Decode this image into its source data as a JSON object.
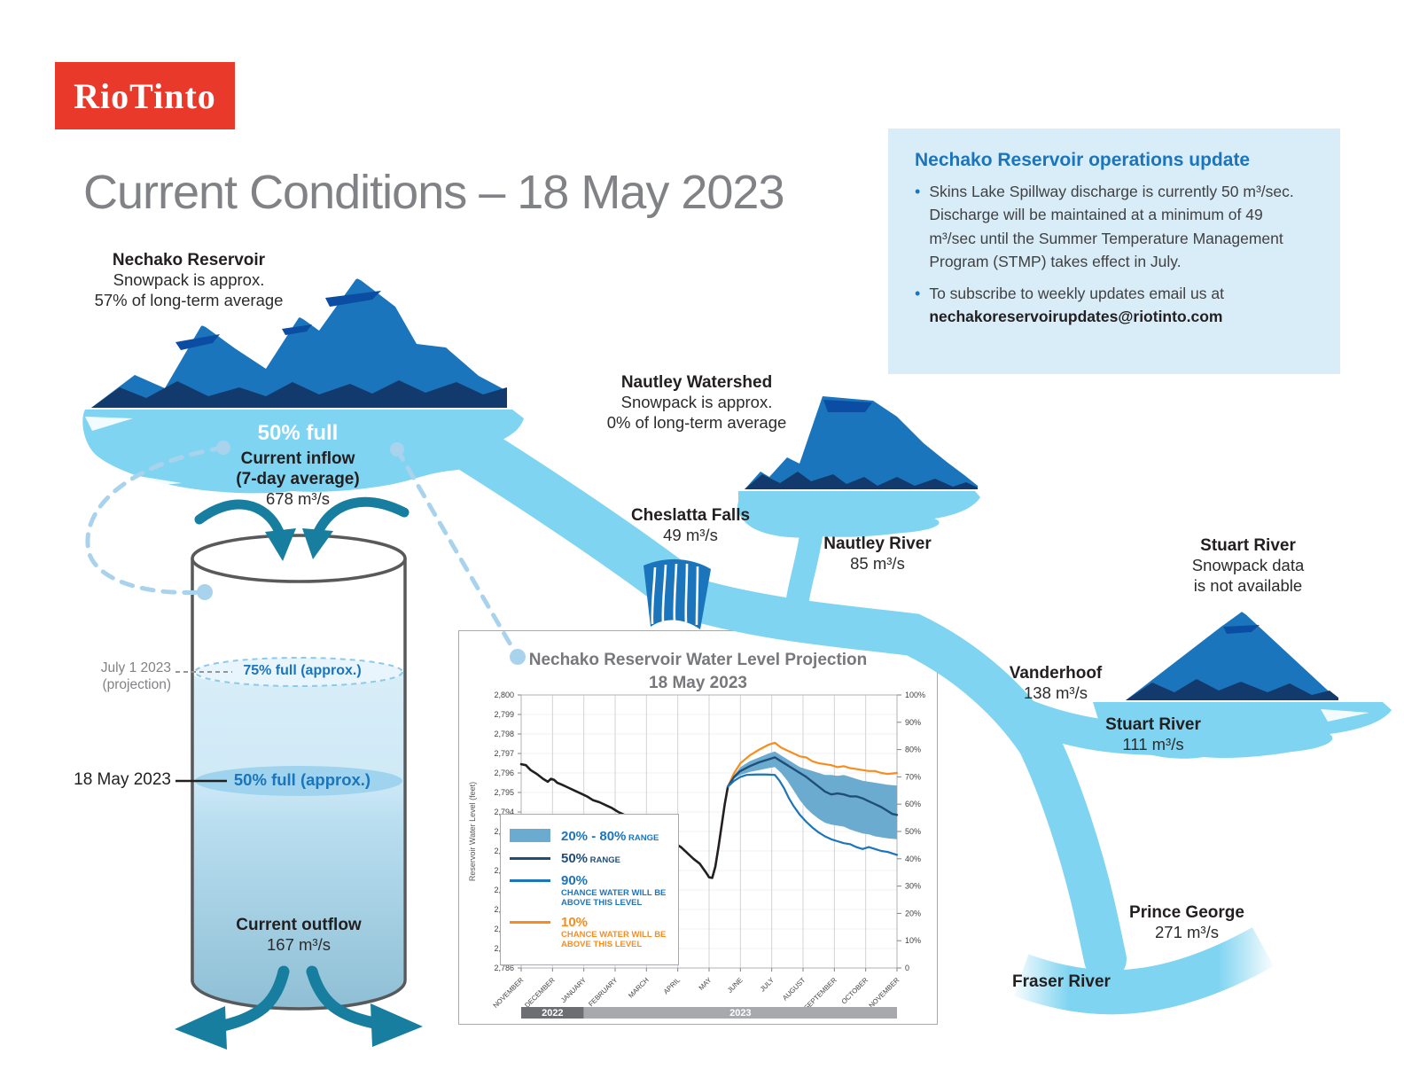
{
  "header": {
    "logo_text": "RioTinto",
    "title": "Current Conditions – 18 May 2023"
  },
  "ops_box": {
    "heading": "Nechako Reservoir operations update",
    "bullet1": "Skins Lake Spillway discharge is currently 50 m³/sec. Discharge will be maintained at a minimum of 49 m³/sec until the Summer Temperature Management Program (STMP) takes effect in July.",
    "bullet2_text": "To subscribe to weekly updates email us at ",
    "bullet2_email": "nechakoreservoirupdates@riotinto.com"
  },
  "nechako": {
    "name": "Nechako Reservoir",
    "line2": "Snowpack is approx.",
    "line3": "57% of long-term average",
    "fill_label": "50% full",
    "inflow_label": "Current inflow",
    "inflow_sub": "(7-day average)",
    "inflow_value": "678 m³/s"
  },
  "cylinder": {
    "proj_date": "July 1 2023",
    "proj_date2": "(projection)",
    "proj_level": "75% full (approx.)",
    "current_date": "18 May 2023",
    "current_level": "50% full (approx.)",
    "outflow_label": "Current outflow",
    "outflow_value": "167 m³/s"
  },
  "cheslatta": {
    "name": "Cheslatta Falls",
    "value": "49 m³/s"
  },
  "nautley": {
    "watershed": "Nautley Watershed",
    "line2": "Snowpack is approx.",
    "line3": "0% of long-term average",
    "river": "Nautley River",
    "value": "85 m³/s"
  },
  "stuart": {
    "name": "Stuart River",
    "line2": "Snowpack data",
    "line3": "is not available",
    "river": "Stuart River",
    "value": "111 m³/s"
  },
  "vanderhoof": {
    "name": "Vanderhoof",
    "value": "138 m³/s"
  },
  "prince_george": {
    "name": "Prince George",
    "value": "271 m³/s"
  },
  "fraser": {
    "name": "Fraser River"
  },
  "colors": {
    "brand_red": "#e8392b",
    "heading_blue": "#1b75bc",
    "river_light": "#7fd4f1",
    "mountain_blue": "#1b75bc",
    "mountain_navy": "#123a6d",
    "teal_arrow": "#177ea0"
  },
  "chart_data": {
    "type": "line",
    "title": "Nechako Reservoir Water Level Projection",
    "subtitle": "18 May 2023",
    "ylabel": "Reservoir Water Level (feet)",
    "ylim": [
      2786,
      2800
    ],
    "y_step": 1,
    "right_axis": {
      "min": 0,
      "max": 100,
      "step": 10,
      "suffix": "%"
    },
    "x_months": [
      "NOVEMBER",
      "DECEMBER",
      "JANUARY",
      "FEBRUARY",
      "MARCH",
      "APRIL",
      "MAY",
      "JUNE",
      "JULY",
      "AUGUST",
      "SEPTEMBER",
      "OCTOBER",
      "NOVEMBER"
    ],
    "year_bars": [
      {
        "label": "2022",
        "from": 0,
        "to": 2,
        "color": "#6d6e71"
      },
      {
        "label": "2023",
        "from": 2,
        "to": 12,
        "color": "#a7a9ac"
      }
    ],
    "band": {
      "name": "20% - 80% range",
      "color": "#6aabcf",
      "upper": [
        [
          6.6,
          2795.3
        ],
        [
          6.8,
          2795.9
        ],
        [
          7.0,
          2796.3
        ],
        [
          7.3,
          2796.6
        ],
        [
          7.6,
          2796.8
        ],
        [
          7.9,
          2797.0
        ],
        [
          8.1,
          2797.1
        ],
        [
          8.3,
          2796.9
        ],
        [
          8.5,
          2796.7
        ],
        [
          8.7,
          2796.5
        ],
        [
          8.9,
          2796.3
        ],
        [
          9.1,
          2796.2
        ],
        [
          9.3,
          2796.1
        ],
        [
          9.5,
          2796.0
        ],
        [
          9.7,
          2795.9
        ],
        [
          9.9,
          2795.9
        ],
        [
          10.1,
          2795.85
        ],
        [
          10.3,
          2795.9
        ],
        [
          10.5,
          2795.8
        ],
        [
          10.7,
          2795.7
        ],
        [
          10.9,
          2795.6
        ],
        [
          11.1,
          2795.55
        ],
        [
          11.3,
          2795.5
        ],
        [
          11.5,
          2795.45
        ],
        [
          11.7,
          2795.4
        ],
        [
          12,
          2795.35
        ]
      ],
      "lower": [
        [
          6.6,
          2795.3
        ],
        [
          6.8,
          2795.7
        ],
        [
          7.0,
          2795.9
        ],
        [
          7.3,
          2796.05
        ],
        [
          7.6,
          2796.15
        ],
        [
          7.9,
          2796.25
        ],
        [
          8.1,
          2796.3
        ],
        [
          8.3,
          2796.0
        ],
        [
          8.5,
          2795.6
        ],
        [
          8.7,
          2795.1
        ],
        [
          8.9,
          2794.6
        ],
        [
          9.1,
          2794.2
        ],
        [
          9.3,
          2793.9
        ],
        [
          9.5,
          2793.65
        ],
        [
          9.7,
          2793.45
        ],
        [
          9.9,
          2793.35
        ],
        [
          10.1,
          2793.3
        ],
        [
          10.3,
          2793.25
        ],
        [
          10.5,
          2793.1
        ],
        [
          10.7,
          2793.0
        ],
        [
          10.9,
          2792.9
        ],
        [
          11.1,
          2792.85
        ],
        [
          11.3,
          2792.75
        ],
        [
          11.5,
          2792.7
        ],
        [
          11.7,
          2792.65
        ],
        [
          12,
          2792.6
        ]
      ]
    },
    "series": [
      {
        "name": "historical water level",
        "color": "#231f20",
        "width": 2.6,
        "points": [
          [
            0,
            2796.45
          ],
          [
            0.15,
            2796.4
          ],
          [
            0.3,
            2796.15
          ],
          [
            0.5,
            2795.95
          ],
          [
            0.7,
            2795.7
          ],
          [
            0.85,
            2795.55
          ],
          [
            0.95,
            2795.7
          ],
          [
            1.05,
            2795.65
          ],
          [
            1.15,
            2795.5
          ],
          [
            1.3,
            2795.4
          ],
          [
            1.5,
            2795.25
          ],
          [
            1.7,
            2795.1
          ],
          [
            1.9,
            2794.95
          ],
          [
            2.1,
            2794.8
          ],
          [
            2.3,
            2794.6
          ],
          [
            2.5,
            2794.5
          ],
          [
            2.7,
            2794.35
          ],
          [
            2.9,
            2794.2
          ],
          [
            3.1,
            2794.0
          ],
          [
            3.3,
            2793.85
          ],
          [
            3.5,
            2793.7
          ],
          [
            3.7,
            2793.5
          ],
          [
            3.9,
            2793.35
          ],
          [
            4.1,
            2793.2
          ],
          [
            4.3,
            2793.05
          ],
          [
            4.5,
            2792.85
          ],
          [
            4.7,
            2792.65
          ],
          [
            4.9,
            2792.4
          ],
          [
            5.1,
            2792.2
          ],
          [
            5.3,
            2791.9
          ],
          [
            5.5,
            2791.6
          ],
          [
            5.7,
            2791.35
          ],
          [
            5.9,
            2790.9
          ],
          [
            6.0,
            2790.65
          ],
          [
            6.1,
            2790.62
          ],
          [
            6.2,
            2791.2
          ],
          [
            6.3,
            2792.2
          ],
          [
            6.4,
            2793.3
          ],
          [
            6.5,
            2794.4
          ],
          [
            6.6,
            2795.3
          ]
        ]
      },
      {
        "name": "10% chance water will be above this level",
        "color": "#f78d1e",
        "width": 2.2,
        "points": [
          [
            6.6,
            2795.3
          ],
          [
            6.8,
            2796.0
          ],
          [
            7.0,
            2796.5
          ],
          [
            7.3,
            2796.9
          ],
          [
            7.6,
            2797.2
          ],
          [
            7.9,
            2797.45
          ],
          [
            8.1,
            2797.55
          ],
          [
            8.3,
            2797.3
          ],
          [
            8.5,
            2797.15
          ],
          [
            8.7,
            2797.0
          ],
          [
            8.9,
            2796.85
          ],
          [
            9.1,
            2796.8
          ],
          [
            9.3,
            2796.6
          ],
          [
            9.5,
            2796.5
          ],
          [
            9.7,
            2796.45
          ],
          [
            9.9,
            2796.4
          ],
          [
            10.1,
            2796.3
          ],
          [
            10.3,
            2796.35
          ],
          [
            10.5,
            2796.25
          ],
          [
            10.7,
            2796.2
          ],
          [
            10.9,
            2796.15
          ],
          [
            11.1,
            2796.1
          ],
          [
            11.3,
            2796.1
          ],
          [
            11.5,
            2796.0
          ],
          [
            11.7,
            2795.95
          ],
          [
            12,
            2796.0
          ]
        ]
      },
      {
        "name": "50% range",
        "color": "#1f4e79",
        "width": 2.4,
        "points": [
          [
            6.6,
            2795.3
          ],
          [
            6.8,
            2795.8
          ],
          [
            7.0,
            2796.1
          ],
          [
            7.3,
            2796.35
          ],
          [
            7.6,
            2796.55
          ],
          [
            7.9,
            2796.7
          ],
          [
            8.1,
            2796.8
          ],
          [
            8.3,
            2796.6
          ],
          [
            8.5,
            2796.4
          ],
          [
            8.7,
            2796.2
          ],
          [
            8.9,
            2796.0
          ],
          [
            9.1,
            2795.8
          ],
          [
            9.3,
            2795.55
          ],
          [
            9.5,
            2795.3
          ],
          [
            9.7,
            2795.05
          ],
          [
            9.9,
            2794.9
          ],
          [
            10.1,
            2794.95
          ],
          [
            10.3,
            2794.9
          ],
          [
            10.5,
            2794.8
          ],
          [
            10.7,
            2794.8
          ],
          [
            10.9,
            2794.7
          ],
          [
            11.1,
            2794.55
          ],
          [
            11.3,
            2794.4
          ],
          [
            11.5,
            2794.25
          ],
          [
            11.7,
            2794.05
          ],
          [
            11.85,
            2793.9
          ],
          [
            12,
            2793.85
          ]
        ]
      },
      {
        "name": "90% chance water will be above this level",
        "color": "#1c75bc",
        "width": 2.2,
        "points": [
          [
            6.6,
            2795.3
          ],
          [
            6.8,
            2795.6
          ],
          [
            7.0,
            2795.8
          ],
          [
            7.2,
            2795.9
          ],
          [
            7.5,
            2795.92
          ],
          [
            7.8,
            2795.92
          ],
          [
            8.1,
            2795.9
          ],
          [
            8.25,
            2795.6
          ],
          [
            8.4,
            2795.2
          ],
          [
            8.55,
            2794.7
          ],
          [
            8.7,
            2794.3
          ],
          [
            8.9,
            2793.85
          ],
          [
            9.1,
            2793.5
          ],
          [
            9.3,
            2793.2
          ],
          [
            9.5,
            2792.95
          ],
          [
            9.7,
            2792.75
          ],
          [
            9.9,
            2792.6
          ],
          [
            10.1,
            2792.5
          ],
          [
            10.3,
            2792.4
          ],
          [
            10.5,
            2792.35
          ],
          [
            10.7,
            2792.2
          ],
          [
            10.9,
            2792.1
          ],
          [
            11.1,
            2792.2
          ],
          [
            11.3,
            2792.1
          ],
          [
            11.5,
            2792.0
          ],
          [
            11.7,
            2791.95
          ],
          [
            11.9,
            2791.85
          ],
          [
            12,
            2791.8
          ]
        ]
      }
    ],
    "legend": [
      {
        "swatch": "band",
        "color": "#6aabcf",
        "text_color": "#1c75bc",
        "big": "20% - 80%",
        "small": " RANGE",
        "sub": ""
      },
      {
        "swatch": "line",
        "color": "#1f4e79",
        "text_color": "#1f4e79",
        "big": "50%",
        "small": " RANGE",
        "sub": ""
      },
      {
        "swatch": "line",
        "color": "#1c75bc",
        "text_color": "#1c75bc",
        "big": "90%",
        "small": "",
        "sub": "CHANCE WATER WILL BE ABOVE THIS LEVEL"
      },
      {
        "swatch": "line",
        "color": "#f78d1e",
        "text_color": "#f78d1e",
        "big": "10%",
        "small": "",
        "sub": "CHANCE WATER WILL BE ABOVE THIS LEVEL"
      }
    ]
  }
}
